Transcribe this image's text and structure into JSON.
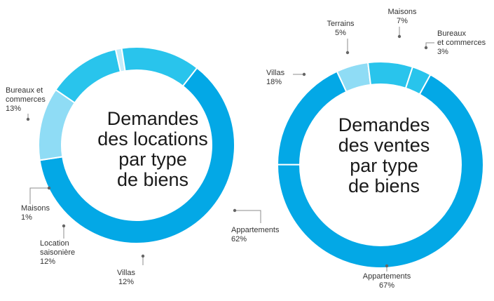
{
  "colors": {
    "primary": "#03a8e6",
    "secondary": "#29c4ec",
    "light": "#8fdcf5",
    "pale": "#c3ecfa",
    "leader": "#8c8c8c"
  },
  "chart_data": [
    {
      "type": "pie",
      "donut": true,
      "title_lines": [
        "Demandes",
        "des locations",
        "par type",
        "de biens"
      ],
      "slices": [
        {
          "name_lines": [
            "Appartements"
          ],
          "value": 62,
          "value_label": "62%",
          "color": "primary"
        },
        {
          "name_lines": [
            "Villas"
          ],
          "value": 12,
          "value_label": "12%",
          "color": "light"
        },
        {
          "name_lines": [
            "Location",
            "saisonière"
          ],
          "value": 12,
          "value_label": "12%",
          "color": "secondary"
        },
        {
          "name_lines": [
            "Maisons"
          ],
          "value": 1,
          "value_label": "1%",
          "color": "pale"
        },
        {
          "name_lines": [
            "Bureaux et",
            "commerces"
          ],
          "value": 13,
          "value_label": "13%",
          "color": "secondary"
        }
      ]
    },
    {
      "type": "pie",
      "donut": true,
      "title_lines": [
        "Demandes",
        "des ventes",
        "par type",
        "de biens"
      ],
      "slices": [
        {
          "name_lines": [
            "Appartements"
          ],
          "value": 67,
          "value_label": "67%",
          "color": "primary"
        },
        {
          "name_lines": [
            "Villas"
          ],
          "value": 18,
          "value_label": "18%",
          "color": "primary"
        },
        {
          "name_lines": [
            "Terrains"
          ],
          "value": 5,
          "value_label": "5%",
          "color": "light"
        },
        {
          "name_lines": [
            "Maisons"
          ],
          "value": 7,
          "value_label": "7%",
          "color": "secondary"
        },
        {
          "name_lines": [
            "Bureaux",
            "et commerces"
          ],
          "value": 3,
          "value_label": "3%",
          "color": "secondary"
        }
      ]
    }
  ]
}
